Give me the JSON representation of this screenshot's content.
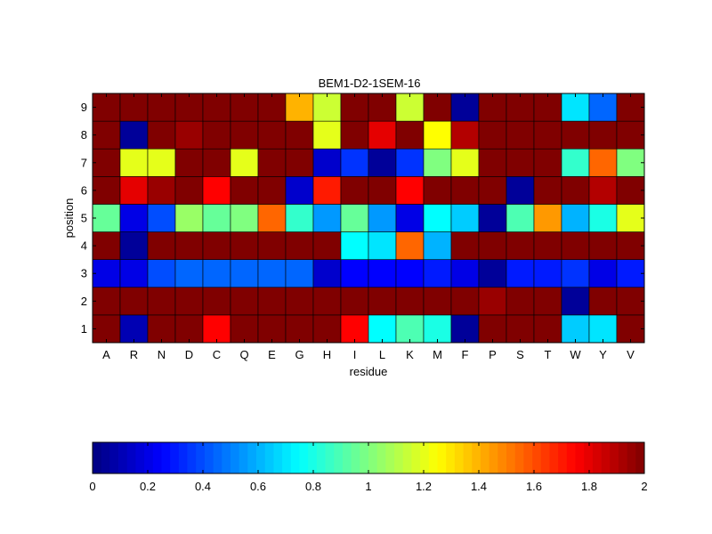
{
  "chart_data": {
    "type": "heatmap",
    "title": "BEM1-D2-1SEM-16",
    "xlabel": "residue",
    "ylabel": "position",
    "x_categories": [
      "A",
      "R",
      "N",
      "D",
      "C",
      "Q",
      "E",
      "G",
      "H",
      "I",
      "L",
      "K",
      "M",
      "F",
      "P",
      "S",
      "T",
      "W",
      "Y",
      "V"
    ],
    "y_categories": [
      "1",
      "2",
      "3",
      "4",
      "5",
      "6",
      "7",
      "8",
      "9"
    ],
    "values": [
      [
        2.0,
        0.1,
        2.0,
        2.0,
        1.75,
        2.0,
        2.0,
        2.0,
        2.0,
        1.75,
        0.75,
        0.9,
        0.8,
        0.05,
        2.0,
        2.0,
        2.0,
        0.65,
        0.7,
        2.0
      ],
      [
        2.0,
        2.0,
        2.0,
        2.0,
        2.0,
        2.0,
        2.0,
        2.0,
        2.0,
        2.0,
        2.0,
        2.0,
        2.0,
        2.0,
        1.95,
        2.0,
        2.0,
        0.05,
        2.0,
        2.0
      ],
      [
        0.2,
        0.2,
        0.4,
        0.45,
        0.45,
        0.45,
        0.45,
        0.45,
        0.15,
        0.25,
        0.25,
        0.25,
        0.3,
        0.2,
        0.05,
        0.3,
        0.3,
        0.35,
        0.2,
        0.3
      ],
      [
        2.0,
        0.05,
        2.0,
        2.0,
        2.0,
        2.0,
        2.0,
        2.0,
        2.0,
        0.75,
        0.7,
        1.55,
        0.6,
        2.0,
        2.0,
        2.0,
        2.0,
        2.0,
        2.0,
        2.0
      ],
      [
        0.95,
        0.2,
        0.4,
        1.05,
        0.95,
        1.0,
        1.55,
        0.85,
        0.55,
        0.95,
        0.55,
        0.2,
        0.75,
        0.65,
        0.05,
        0.9,
        1.45,
        0.6,
        0.8,
        1.2
      ],
      [
        2.0,
        1.8,
        1.95,
        2.0,
        1.75,
        2.0,
        2.0,
        0.15,
        1.7,
        2.0,
        2.0,
        1.75,
        2.0,
        2.0,
        2.0,
        0.05,
        2.0,
        2.0,
        1.9,
        2.0
      ],
      [
        2.0,
        1.2,
        1.2,
        2.0,
        2.0,
        1.2,
        2.0,
        2.0,
        0.15,
        0.35,
        0.05,
        0.35,
        1.0,
        1.2,
        2.0,
        2.0,
        2.0,
        0.85,
        1.55,
        1.0
      ],
      [
        2.0,
        0.05,
        2.0,
        1.95,
        2.0,
        2.0,
        2.0,
        2.0,
        1.2,
        2.0,
        1.8,
        2.0,
        1.25,
        1.9,
        2.0,
        2.0,
        2.0,
        2.0,
        2.0,
        2.0
      ],
      [
        2.0,
        2.0,
        2.0,
        2.0,
        2.0,
        2.0,
        2.0,
        1.4,
        1.15,
        2.0,
        2.0,
        1.15,
        2.0,
        0.05,
        2.0,
        2.0,
        2.0,
        0.7,
        0.45,
        2.0
      ]
    ],
    "colorbar": {
      "colormap": "jet",
      "range": [
        0,
        2
      ],
      "ticks": [
        0,
        0.2,
        0.4,
        0.6,
        0.8,
        1,
        1.2,
        1.4,
        1.6,
        1.8,
        2
      ],
      "tick_labels": [
        "0",
        "0.2",
        "0.4",
        "0.6",
        "0.8",
        "1",
        "1.2",
        "1.4",
        "1.6",
        "1.8",
        "2"
      ]
    }
  }
}
